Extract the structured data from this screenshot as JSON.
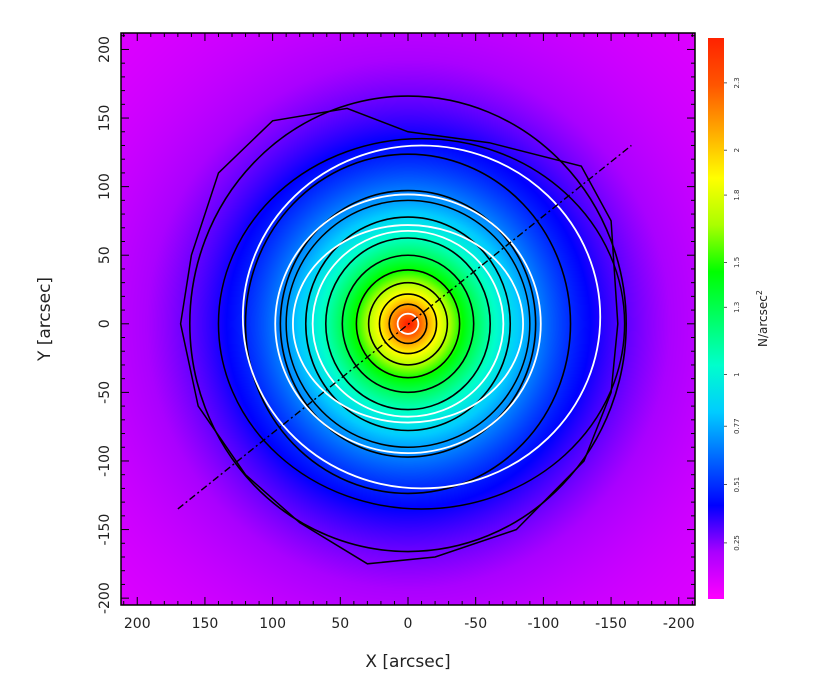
{
  "chart_data": {
    "type": "heatmap",
    "xlabel": "X [arcsec]",
    "ylabel": "Y [arcsec]",
    "xlim": [
      212,
      -212
    ],
    "ylim": [
      -205,
      212
    ],
    "x_axis_reversed": true,
    "x_ticks": [
      200,
      150,
      100,
      50,
      0,
      -50,
      -100,
      -150,
      -200
    ],
    "y_ticks": [
      -200,
      -150,
      -100,
      -50,
      0,
      50,
      100,
      150,
      200
    ],
    "y_tick_labels_rotated": true,
    "colorbar": {
      "title": "N/arcsec",
      "title_superscript": "2",
      "min": 0,
      "max": 2.5,
      "tick_values": [
        0.25,
        0.51,
        0.77,
        1,
        1.3,
        1.5,
        1.8,
        2,
        2.3
      ],
      "tick_labels": [
        "0.25",
        "0.51",
        "0.77",
        "1",
        "1.3",
        "1.5",
        "1.8",
        "2",
        "2.3"
      ],
      "colors": [
        "#ff00ff",
        "#aa00ff",
        "#0000ff",
        "#0066ff",
        "#00ccff",
        "#00ffcc",
        "#00ff66",
        "#00ff00",
        "#aaff00",
        "#ffff00",
        "#ffaa00",
        "#ff5500",
        "#ff2200"
      ]
    },
    "density_peak": {
      "x": 0,
      "y": 0,
      "value": 2.5
    },
    "density_core_radius_arcsec": 70,
    "background_level": 0.05,
    "black_contour_levels": [
      0.3,
      0.5,
      0.7,
      0.9,
      1.1,
      1.3,
      1.5,
      1.7,
      1.9,
      2.1
    ],
    "white_contour_levels": [
      0.7,
      1.0,
      2.3
    ],
    "outer_contour_points": [
      [
        -155,
        0
      ],
      [
        -150,
        75
      ],
      [
        -128,
        115
      ],
      [
        -60,
        132
      ],
      [
        0,
        140
      ],
      [
        45,
        157
      ],
      [
        100,
        148
      ],
      [
        140,
        110
      ],
      [
        160,
        50
      ],
      [
        168,
        0
      ],
      [
        155,
        -60
      ],
      [
        120,
        -110
      ],
      [
        80,
        -145
      ],
      [
        30,
        -175
      ],
      [
        -20,
        -170
      ],
      [
        -80,
        -150
      ],
      [
        -130,
        -100
      ],
      [
        -150,
        -50
      ]
    ],
    "ellipses": [
      {
        "color": "white",
        "center": [
          -10,
          5
        ],
        "semi_axes": [
          132,
          125
        ],
        "angle_deg": 0
      },
      {
        "color": "black",
        "center": [
          -10,
          0
        ],
        "semi_axes": [
          150,
          135
        ],
        "angle_deg": 0
      },
      {
        "color": "white",
        "center": [
          0,
          0
        ],
        "semi_axes": [
          85,
          72
        ],
        "angle_deg": 0
      },
      {
        "color": "black",
        "center": [
          0,
          0
        ],
        "semi_axes": [
          90,
          90
        ],
        "angle_deg": 0
      }
    ],
    "major_axis_line": {
      "from": [
        170,
        -135
      ],
      "to": [
        -165,
        130
      ],
      "style": "dash-dot"
    }
  }
}
